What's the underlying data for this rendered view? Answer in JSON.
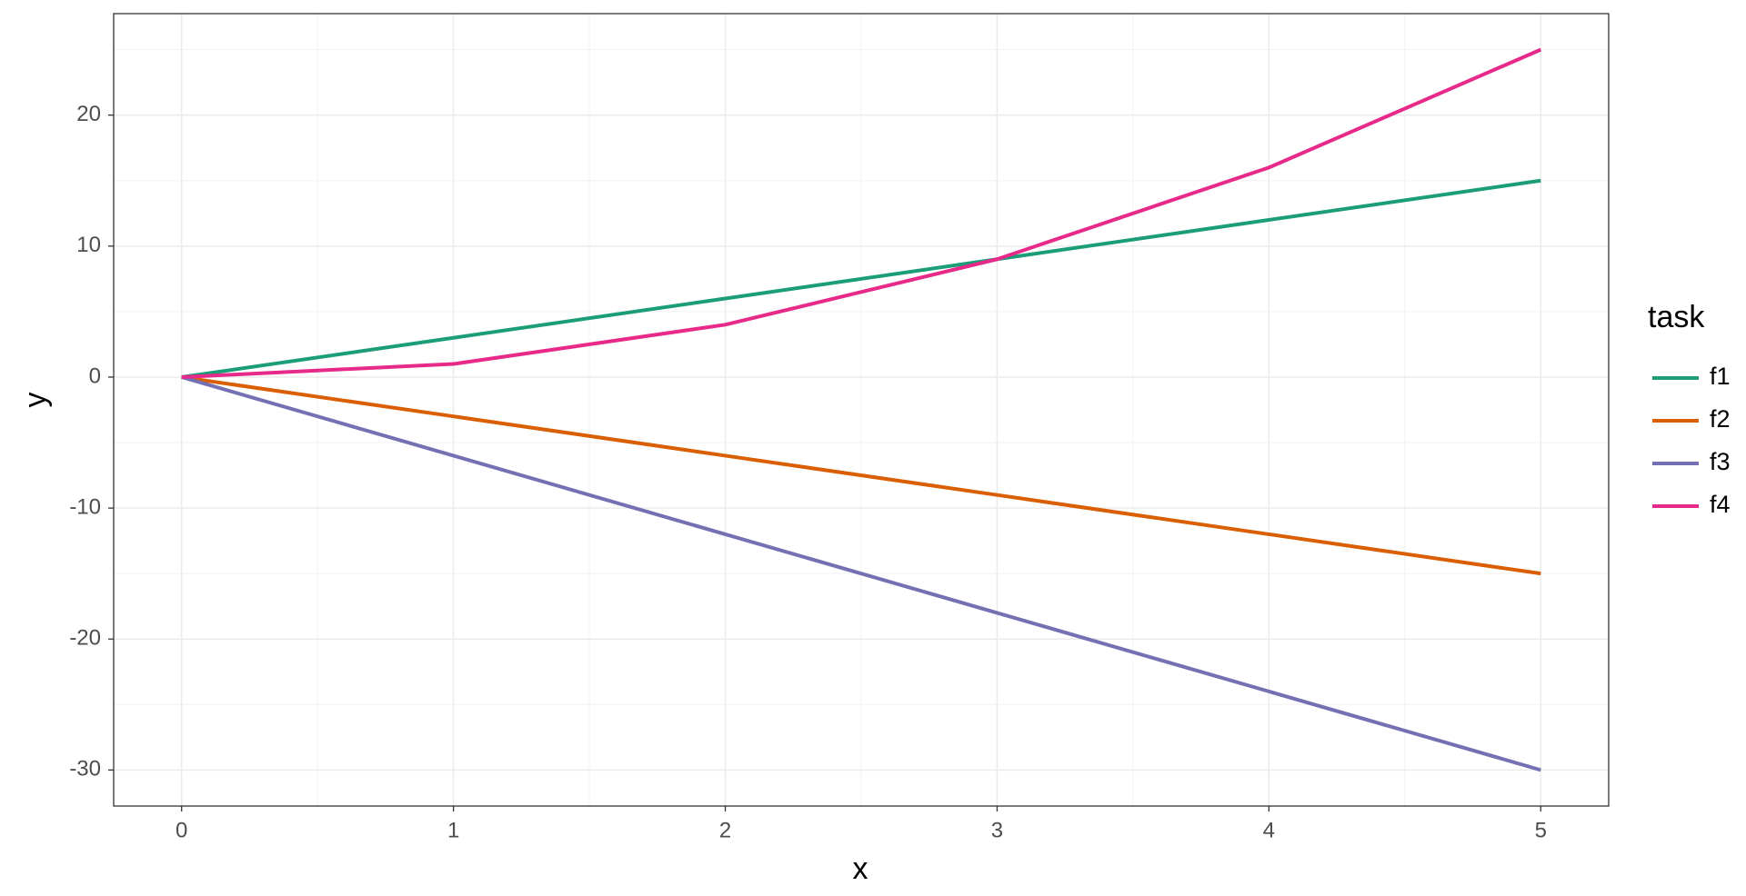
{
  "chart_data": {
    "type": "line",
    "x": [
      0,
      1,
      2,
      3,
      4,
      5
    ],
    "series": [
      {
        "name": "f1",
        "color": "#1b9e77",
        "values": [
          0,
          3,
          6,
          9,
          12,
          15
        ]
      },
      {
        "name": "f2",
        "color": "#d95f02",
        "values": [
          0,
          -3,
          -6,
          -9,
          -12,
          -15
        ]
      },
      {
        "name": "f3",
        "color": "#7570b3",
        "values": [
          0,
          -6,
          -12,
          -18,
          -24,
          -30
        ]
      },
      {
        "name": "f4",
        "color": "#e7298a",
        "values": [
          0,
          1,
          4,
          9,
          16,
          25
        ]
      }
    ],
    "xlabel": "x",
    "ylabel": "y",
    "legend_title": "task",
    "legend": "right",
    "xlim": [
      -0.25,
      5.25
    ],
    "ylim": [
      -32.75,
      27.75
    ],
    "xticks": [
      0,
      1,
      2,
      3,
      4,
      5
    ],
    "yticks": [
      -30,
      -20,
      -10,
      0,
      10,
      20
    ],
    "x_minor_grid": [
      0.5,
      1.5,
      2.5,
      3.5,
      4.5
    ],
    "y_minor_grid": [
      -25,
      -15,
      -5,
      5,
      15,
      25
    ],
    "grid": true
  }
}
